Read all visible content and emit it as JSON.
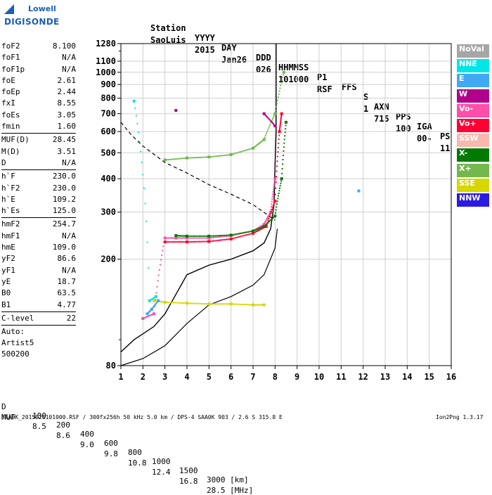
{
  "logo": {
    "line1": "Lowell",
    "line2": "DIGISONDE"
  },
  "header": {
    "cols": [
      "Station",
      "YYYY",
      "DAY",
      "DDD",
      "HHMMSS",
      "P1",
      "FFS",
      "S",
      "AXN",
      "PPS",
      "IGA",
      "PS"
    ],
    "vals": [
      "SaoLuis",
      "2015",
      "Jan26",
      "026",
      "101000",
      "RSF",
      "",
      "1",
      "715",
      "100",
      "00-",
      "11"
    ]
  },
  "params_group1": [
    {
      "name": "foF2",
      "value": "8.100"
    },
    {
      "name": "foF1",
      "value": "N/A"
    },
    {
      "name": "foF1p",
      "value": "N/A"
    },
    {
      "name": "foE",
      "value": "2.61"
    },
    {
      "name": "foEp",
      "value": "2.44"
    },
    {
      "name": "fxI",
      "value": "8.55"
    },
    {
      "name": "foEs",
      "value": "3.05"
    },
    {
      "name": "fmin",
      "value": "1.60"
    }
  ],
  "params_group2": [
    {
      "name": "MUF(D)",
      "value": "28.45"
    },
    {
      "name": "M(D)",
      "value": "3.51"
    },
    {
      "name": "D",
      "value": "N/A"
    }
  ],
  "params_group3": [
    {
      "name": "h`F",
      "value": "230.0"
    },
    {
      "name": "h`F2",
      "value": "230.0"
    },
    {
      "name": "h`E",
      "value": "109.2"
    },
    {
      "name": "h`Es",
      "value": "125.0"
    }
  ],
  "params_group4": [
    {
      "name": "hmF2",
      "value": "254.7"
    },
    {
      "name": "hmF1",
      "value": "N/A"
    },
    {
      "name": "hmE",
      "value": "109.0"
    },
    {
      "name": "yF2",
      "value": "86.6"
    },
    {
      "name": "yF1",
      "value": "N/A"
    },
    {
      "name": "yE",
      "value": "18.7"
    },
    {
      "name": "B0",
      "value": "63.5"
    },
    {
      "name": "B1",
      "value": "4.77"
    }
  ],
  "params_group5": [
    {
      "name": "C-level",
      "value": "22"
    }
  ],
  "auto": {
    "label": "Auto:",
    "software": "Artist5",
    "version": "500200"
  },
  "legend": [
    {
      "label": "NoVal",
      "color": "#a6a6a6"
    },
    {
      "label": "NNE",
      "color": "#00e6e6"
    },
    {
      "label": "E",
      "color": "#3fa9f5"
    },
    {
      "label": "W",
      "color": "#b0008c"
    },
    {
      "label": "Vo-",
      "color": "#ff4fa8"
    },
    {
      "label": "Vo+",
      "color": "#ff0033"
    },
    {
      "label": "SSW",
      "color": "#f7b8b0"
    },
    {
      "label": "X-",
      "color": "#007a00"
    },
    {
      "label": "X+",
      "color": "#72b84c"
    },
    {
      "label": "SSE",
      "color": "#d6d600"
    },
    {
      "label": "NNW",
      "color": "#2a1be0"
    }
  ],
  "muf_table": {
    "d_label": "D",
    "d_values": [
      "100",
      "200",
      "400",
      "600",
      "800",
      "1000",
      "1500",
      "3000 [km]"
    ],
    "muf_label": "MUF",
    "muf_values": [
      "8.5",
      "8.6",
      "9.0",
      "9.8",
      "10.8",
      "12.4",
      "16.8",
      "28.5 [MHz]"
    ]
  },
  "footer": {
    "left": "SAA0K_2015026101000.RSF / 300fx256h 50 kHz 5.0 km / DPS-4 SAA0K 903 / 2.6 S 315.8 E",
    "right": "Ion2Png 1.3.17"
  },
  "chart_data": {
    "type": "scatter",
    "title": "",
    "xlabel": "",
    "ylabel": "",
    "xlim": [
      1,
      16
    ],
    "ylim": [
      80,
      1280
    ],
    "yscale": "log",
    "x_ticks": [
      1,
      2,
      3,
      4,
      5,
      6,
      7,
      8,
      9,
      10,
      11,
      12,
      13,
      14,
      15,
      16
    ],
    "y_ticks": [
      80,
      200,
      300,
      400,
      500,
      600,
      700,
      800,
      900,
      1000,
      1100,
      1280
    ],
    "grid": true,
    "series": [
      {
        "name": "Vo-",
        "color": "#ff4fa8",
        "x": [
          2.0,
          2.5,
          3.0,
          3.5,
          4.0,
          5.0,
          6.0,
          7.0,
          7.5,
          7.8,
          8.0
        ],
        "y": [
          120,
          125,
          240,
          240,
          240,
          240,
          245,
          255,
          270,
          300,
          400
        ]
      },
      {
        "name": "Vo+",
        "color": "#ff0033",
        "x": [
          3.0,
          4.0,
          5.0,
          6.0,
          7.0,
          7.6,
          8.0,
          8.2,
          8.3
        ],
        "y": [
          232,
          232,
          233,
          238,
          250,
          265,
          330,
          600,
          700
        ]
      },
      {
        "name": "X-",
        "color": "#007a00",
        "x": [
          3.5,
          4.0,
          5.0,
          6.0,
          7.0,
          7.5,
          8.0,
          8.3,
          8.5
        ],
        "y": [
          245,
          244,
          244,
          246,
          255,
          265,
          290,
          400,
          650
        ]
      },
      {
        "name": "X+",
        "color": "#72b84c",
        "x": [
          3.0,
          4.0,
          5.0,
          6.0,
          7.0,
          7.5,
          8.0,
          8.4
        ],
        "y": [
          470,
          478,
          482,
          492,
          520,
          560,
          700,
          1000
        ]
      },
      {
        "name": "SSE",
        "color": "#d6d600",
        "x": [
          2.5,
          3.0,
          4.0,
          5.0,
          6.0,
          7.0,
          7.5
        ],
        "y": [
          140,
          138,
          137,
          136,
          136,
          135,
          135
        ]
      },
      {
        "name": "NNE",
        "color": "#00e6e6",
        "x": [
          1.6,
          2.3,
          2.6
        ],
        "y": [
          780,
          140,
          145
        ]
      },
      {
        "name": "E",
        "color": "#3fa9f5",
        "x": [
          2.2,
          2.4,
          2.7,
          11.8
        ],
        "y": [
          125,
          130,
          140,
          360
        ]
      },
      {
        "name": "W",
        "color": "#b0008c",
        "x": [
          3.5,
          7.5,
          8.0
        ],
        "y": [
          720,
          700,
          630
        ]
      }
    ],
    "profile_solid": {
      "x": [
        1.0,
        1.6,
        2.5,
        3.0,
        4.0,
        5.0,
        6.0,
        7.0,
        7.5,
        7.8,
        7.95,
        8.0,
        8.05,
        8.05
      ],
      "y": [
        90,
        100,
        112,
        125,
        175,
        190,
        200,
        215,
        230,
        260,
        320,
        450,
        600,
        1280
      ]
    },
    "profile_dashed": {
      "x": [
        1.0,
        1.5,
        2.0,
        3.0,
        4.0,
        5.0,
        6.0,
        7.0,
        8.0
      ],
      "y": [
        650,
        580,
        530,
        460,
        420,
        380,
        350,
        320,
        280
      ]
    },
    "profile_low": {
      "x": [
        1.0,
        2.0,
        3.0,
        4.0,
        5.0,
        6.0,
        7.0,
        7.5,
        8.0,
        8.1
      ],
      "y": [
        80,
        85,
        95,
        115,
        135,
        145,
        160,
        175,
        220,
        260
      ]
    }
  }
}
